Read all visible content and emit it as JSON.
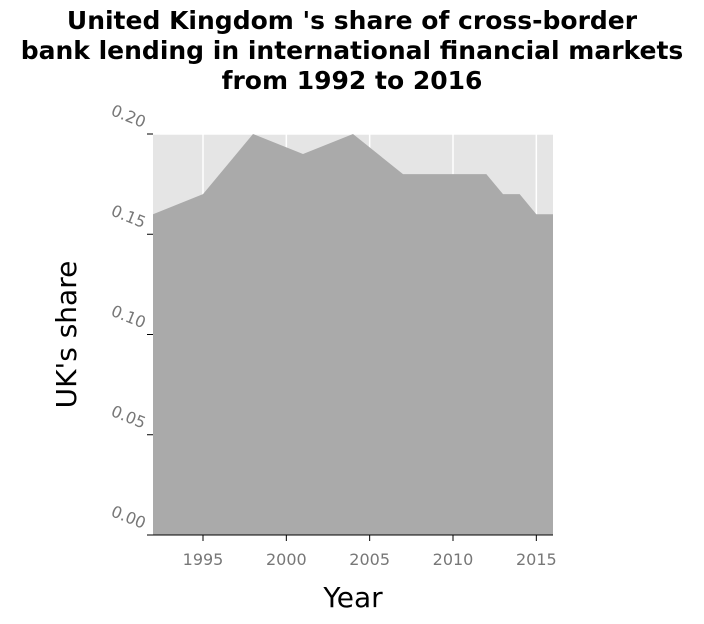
{
  "chart_data": {
    "type": "area",
    "title": "United Kingdom 's share of cross-border\nbank lending in international financial markets\nfrom 1992 to 2016",
    "xlabel": "Year",
    "ylabel": "UK's share",
    "x": [
      1992,
      1995,
      1998,
      2001,
      2004,
      2007,
      2012,
      2013,
      2014,
      2015,
      2016
    ],
    "series": [
      {
        "values": [
          0.16,
          0.17,
          0.2,
          0.19,
          0.2,
          0.18,
          0.18,
          0.17,
          0.17,
          0.16,
          0.16
        ]
      }
    ],
    "xlim": [
      1992,
      2016
    ],
    "ylim": [
      0,
      0.2
    ],
    "xticks": [
      1995,
      2000,
      2005,
      2010,
      2015
    ],
    "xtick_labels": [
      "1995",
      "2000",
      "2005",
      "2010",
      "2015"
    ],
    "yticks": [
      0,
      0.05,
      0.1,
      0.15,
      0.2
    ],
    "ytick_labels": [
      "0.00",
      "0.05",
      "0.10",
      "0.15",
      "0.20"
    ],
    "grid": true,
    "colors": {
      "plot_background": "#e5e5e5",
      "area": "#aaaaaa",
      "grid": "#ffffff"
    }
  }
}
